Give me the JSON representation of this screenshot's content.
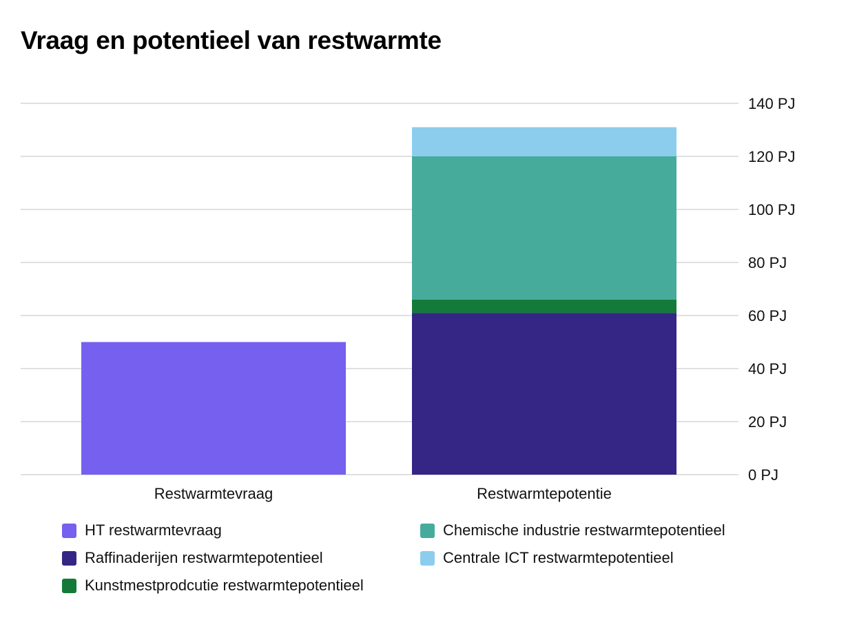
{
  "chart_data": {
    "type": "bar",
    "stacked": true,
    "title": "Vraag en potentieel van restwarmte",
    "categories": [
      "Restwarmtevraag",
      "Restwarmtepotentie"
    ],
    "y_axis": {
      "position": "right",
      "min": 0,
      "max": 140,
      "ticks": [
        0,
        20,
        40,
        60,
        80,
        100,
        120,
        140
      ],
      "tick_labels": [
        "0 PJ",
        "20 PJ",
        "40 PJ",
        "60 PJ",
        "80 PJ",
        "100 PJ",
        "120 PJ",
        "140 PJ"
      ],
      "grid": true
    },
    "series": [
      {
        "name": "HT restwarmtevraag",
        "color": "#7660ef",
        "values": [
          50,
          0
        ]
      },
      {
        "name": "Raffinaderijen restwarmtepotentieel",
        "color": "#352585",
        "values": [
          0,
          61
        ]
      },
      {
        "name": "Kunstmestprodcutie restwarmtepotentieel",
        "color": "#147a3a",
        "values": [
          0,
          5
        ]
      },
      {
        "name": "Chemische industrie restwarmtepotentieel",
        "color": "#46ab9b",
        "values": [
          0,
          54
        ]
      },
      {
        "name": "Centrale ICT restwarmtepotentieel",
        "color": "#8ccdee",
        "values": [
          0,
          11
        ]
      }
    ],
    "legend": {
      "position": "bottom",
      "columns": 2
    }
  }
}
